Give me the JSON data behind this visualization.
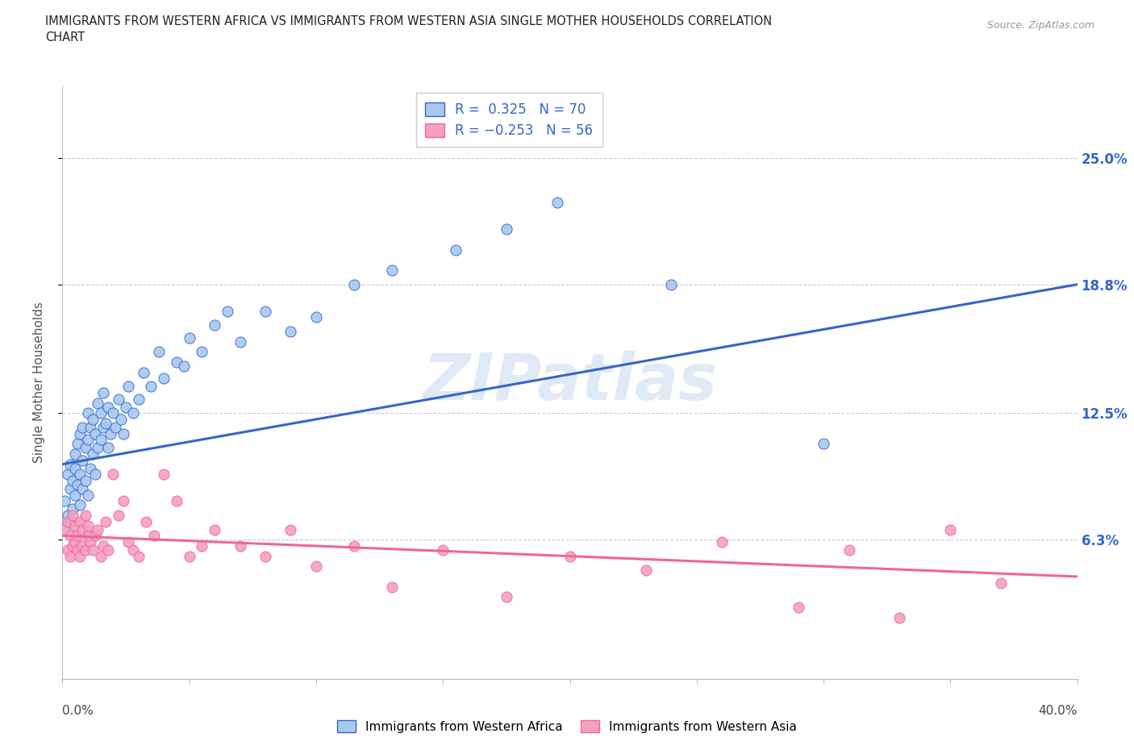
{
  "title_line1": "IMMIGRANTS FROM WESTERN AFRICA VS IMMIGRANTS FROM WESTERN ASIA SINGLE MOTHER HOUSEHOLDS CORRELATION",
  "title_line2": "CHART",
  "source": "Source: ZipAtlas.com",
  "ylabel": "Single Mother Households",
  "ytick_labels": [
    "6.3%",
    "12.5%",
    "18.8%",
    "25.0%"
  ],
  "ytick_values": [
    0.063,
    0.125,
    0.188,
    0.25
  ],
  "xlim": [
    0.0,
    0.4
  ],
  "ylim": [
    -0.005,
    0.285
  ],
  "watermark": "ZIPatlas",
  "color_blue": "#A8C8EE",
  "color_pink": "#F4A0C0",
  "line_blue": "#3366CC",
  "line_pink": "#EE6699",
  "blue_line_start": 0.1,
  "blue_line_end": 0.188,
  "pink_line_start": 0.065,
  "pink_line_end": 0.045,
  "blue_scatter_x": [
    0.001,
    0.002,
    0.002,
    0.003,
    0.003,
    0.003,
    0.004,
    0.004,
    0.005,
    0.005,
    0.005,
    0.006,
    0.006,
    0.007,
    0.007,
    0.007,
    0.008,
    0.008,
    0.008,
    0.009,
    0.009,
    0.01,
    0.01,
    0.01,
    0.011,
    0.011,
    0.012,
    0.012,
    0.013,
    0.013,
    0.014,
    0.014,
    0.015,
    0.015,
    0.016,
    0.016,
    0.017,
    0.018,
    0.018,
    0.019,
    0.02,
    0.021,
    0.022,
    0.023,
    0.024,
    0.025,
    0.026,
    0.028,
    0.03,
    0.032,
    0.035,
    0.038,
    0.04,
    0.045,
    0.048,
    0.05,
    0.055,
    0.06,
    0.065,
    0.07,
    0.08,
    0.09,
    0.1,
    0.115,
    0.13,
    0.155,
    0.175,
    0.195,
    0.24,
    0.3
  ],
  "blue_scatter_y": [
    0.082,
    0.075,
    0.095,
    0.088,
    0.072,
    0.1,
    0.078,
    0.092,
    0.085,
    0.098,
    0.105,
    0.09,
    0.11,
    0.095,
    0.08,
    0.115,
    0.088,
    0.102,
    0.118,
    0.092,
    0.108,
    0.085,
    0.112,
    0.125,
    0.098,
    0.118,
    0.105,
    0.122,
    0.095,
    0.115,
    0.108,
    0.13,
    0.112,
    0.125,
    0.118,
    0.135,
    0.12,
    0.108,
    0.128,
    0.115,
    0.125,
    0.118,
    0.132,
    0.122,
    0.115,
    0.128,
    0.138,
    0.125,
    0.132,
    0.145,
    0.138,
    0.155,
    0.142,
    0.15,
    0.148,
    0.162,
    0.155,
    0.168,
    0.175,
    0.16,
    0.175,
    0.165,
    0.172,
    0.188,
    0.195,
    0.205,
    0.215,
    0.228,
    0.188,
    0.11
  ],
  "pink_scatter_x": [
    0.001,
    0.002,
    0.002,
    0.003,
    0.003,
    0.004,
    0.004,
    0.005,
    0.005,
    0.006,
    0.006,
    0.007,
    0.007,
    0.008,
    0.008,
    0.009,
    0.009,
    0.01,
    0.01,
    0.011,
    0.012,
    0.013,
    0.014,
    0.015,
    0.016,
    0.017,
    0.018,
    0.02,
    0.022,
    0.024,
    0.026,
    0.028,
    0.03,
    0.033,
    0.036,
    0.04,
    0.045,
    0.05,
    0.055,
    0.06,
    0.07,
    0.08,
    0.09,
    0.1,
    0.115,
    0.13,
    0.15,
    0.175,
    0.2,
    0.23,
    0.26,
    0.29,
    0.31,
    0.33,
    0.35,
    0.37
  ],
  "pink_scatter_y": [
    0.068,
    0.058,
    0.072,
    0.055,
    0.065,
    0.06,
    0.075,
    0.062,
    0.07,
    0.058,
    0.065,
    0.072,
    0.055,
    0.068,
    0.06,
    0.075,
    0.058,
    0.065,
    0.07,
    0.062,
    0.058,
    0.065,
    0.068,
    0.055,
    0.06,
    0.072,
    0.058,
    0.095,
    0.075,
    0.082,
    0.062,
    0.058,
    0.055,
    0.072,
    0.065,
    0.095,
    0.082,
    0.055,
    0.06,
    0.068,
    0.06,
    0.055,
    0.068,
    0.05,
    0.06,
    0.04,
    0.058,
    0.035,
    0.055,
    0.048,
    0.062,
    0.03,
    0.058,
    0.025,
    0.068,
    0.042
  ]
}
